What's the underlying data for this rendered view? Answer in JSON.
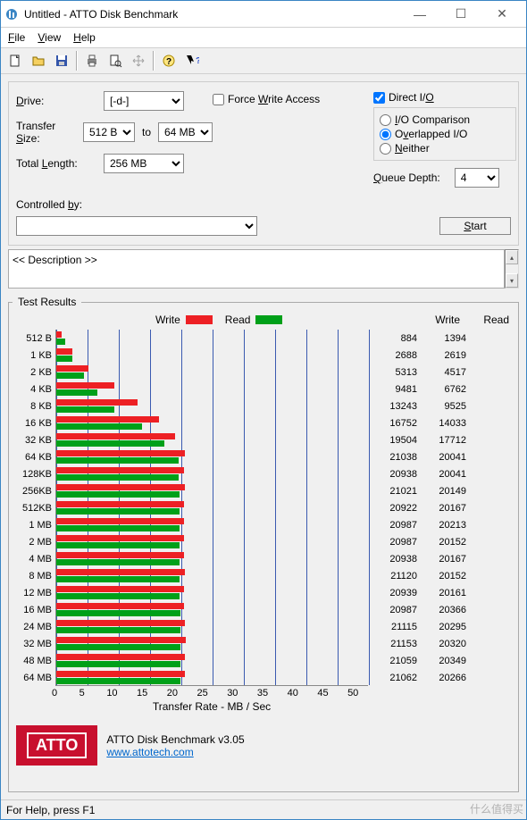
{
  "window": {
    "title": "Untitled - ATTO Disk Benchmark"
  },
  "menu": {
    "file": "File",
    "view": "View",
    "help": "Help"
  },
  "labels": {
    "drive": "Drive:",
    "transfer_size": "Transfer Size:",
    "to": "to",
    "total_length": "Total Length:",
    "force_write": "Force Write Access",
    "direct_io": "Direct I/O",
    "io_comparison": "I/O Comparison",
    "overlapped_io": "Overlapped I/O",
    "neither": "Neither",
    "queue_depth": "Queue Depth:",
    "controlled_by": "Controlled by:",
    "start": "Start",
    "description_placeholder": "<< Description >>",
    "test_results": "Test Results",
    "write": "Write",
    "read": "Read",
    "xlabel": "Transfer Rate - MB / Sec"
  },
  "values": {
    "drive": "[-d-]",
    "tsize_from": "512 B",
    "tsize_to": "64 MB",
    "total_length": "256 MB",
    "direct_io_checked": true,
    "queue_depth": "4",
    "force_write_checked": false,
    "io_mode": "overlapped"
  },
  "chart": {
    "colors": {
      "write": "#ed2024",
      "read": "#00a019",
      "gridline": "#3a5ab0",
      "axis": "#666"
    },
    "xmin": 0,
    "xmax": 50,
    "xtick_step": 5,
    "xticks": [
      0,
      5,
      10,
      15,
      20,
      25,
      30,
      35,
      40,
      45,
      50
    ],
    "rows": [
      {
        "label": "512 B",
        "write": 884,
        "read": 1394
      },
      {
        "label": "1 KB",
        "write": 2688,
        "read": 2619
      },
      {
        "label": "2 KB",
        "write": 5313,
        "read": 4517
      },
      {
        "label": "4 KB",
        "write": 9481,
        "read": 6762
      },
      {
        "label": "8 KB",
        "write": 13243,
        "read": 9525
      },
      {
        "label": "16 KB",
        "write": 16752,
        "read": 14033
      },
      {
        "label": "32 KB",
        "write": 19504,
        "read": 17712
      },
      {
        "label": "64 KB",
        "write": 21038,
        "read": 20041
      },
      {
        "label": "128KB",
        "write": 20938,
        "read": 20041
      },
      {
        "label": "256KB",
        "write": 21021,
        "read": 20149
      },
      {
        "label": "512KB",
        "write": 20922,
        "read": 20167
      },
      {
        "label": "1 MB",
        "write": 20987,
        "read": 20213
      },
      {
        "label": "2 MB",
        "write": 20987,
        "read": 20152
      },
      {
        "label": "4 MB",
        "write": 20938,
        "read": 20167
      },
      {
        "label": "8 MB",
        "write": 21120,
        "read": 20152
      },
      {
        "label": "12 MB",
        "write": 20939,
        "read": 20161
      },
      {
        "label": "16 MB",
        "write": 20987,
        "read": 20366
      },
      {
        "label": "24 MB",
        "write": 21115,
        "read": 20295
      },
      {
        "label": "32 MB",
        "write": 21153,
        "read": 20320
      },
      {
        "label": "48 MB",
        "write": 21059,
        "read": 20349
      },
      {
        "label": "64 MB",
        "write": 21062,
        "read": 20266
      }
    ]
  },
  "footer": {
    "logo_text": "ATTO",
    "product": "ATTO Disk Benchmark v3.05",
    "url": "www.attotech.com"
  },
  "statusbar": {
    "text": "For Help, press F1"
  },
  "watermark": "什么值得买"
}
